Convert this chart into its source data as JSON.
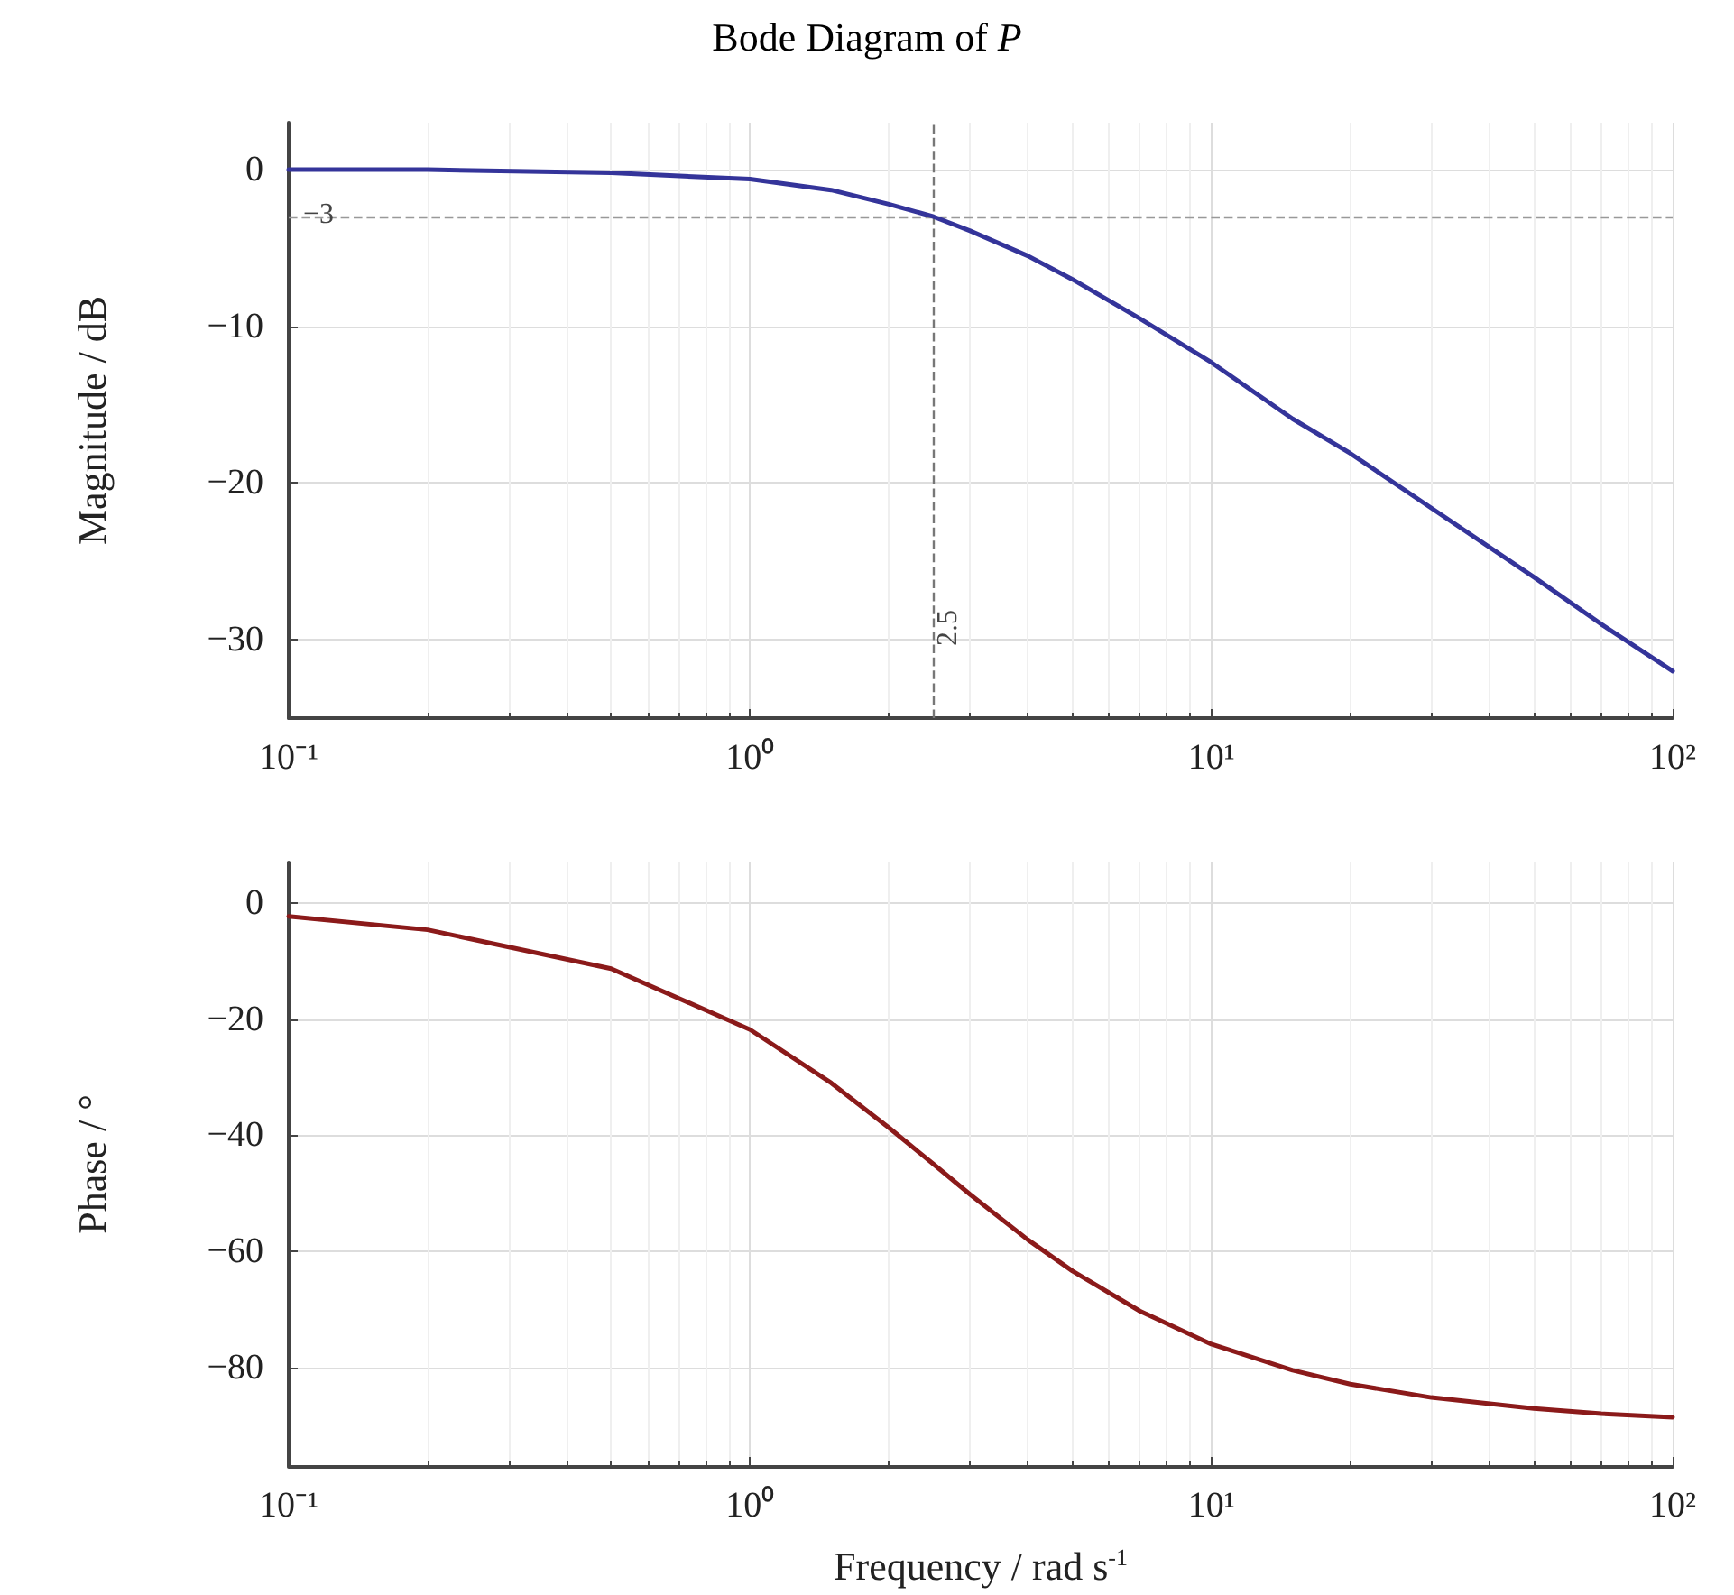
{
  "chart_data": [
    {
      "type": "line",
      "title": "Bode Diagram of P",
      "ylabel": "Magnitude / dB",
      "x": [
        0.1,
        0.2,
        0.5,
        1,
        1.5,
        2,
        2.5,
        3,
        4,
        5,
        7,
        10,
        15,
        20,
        30,
        50,
        70,
        100
      ],
      "series": [
        {
          "color": "#34349a",
          "values": [
            0.0,
            0.0,
            -0.2,
            -0.6,
            -1.3,
            -2.2,
            -3.0,
            -3.9,
            -5.5,
            -7.0,
            -9.5,
            -12.3,
            -15.9,
            -18.1,
            -21.6,
            -26.0,
            -29.0,
            -32.0
          ]
        }
      ],
      "log": "x",
      "xlim": [
        0.1,
        100
      ],
      "xticks": [
        {
          "value": 0.1,
          "label": "10⁻¹"
        },
        {
          "value": 1,
          "label": "10⁰"
        },
        {
          "value": 10,
          "label": "10¹"
        },
        {
          "value": 100,
          "label": "10²"
        }
      ],
      "ylim": [
        -35,
        3
      ],
      "yticks": [
        0,
        {
          "value": -10,
          "label": "−10"
        },
        {
          "value": -20,
          "label": "−20"
        },
        {
          "value": -30,
          "label": "−30"
        }
      ],
      "ref_lines": [
        {
          "axis": "y",
          "value": -3,
          "label": "−3",
          "color": "#999999",
          "line_style": "dashed"
        },
        {
          "axis": "x",
          "value": 2.5,
          "label": "2.5",
          "color": "#777777",
          "line_style": "dashed"
        }
      ],
      "grid": true,
      "marker": "none",
      "line_style": "solid"
    },
    {
      "type": "line",
      "xlabel": "Frequency / rad s$^{-1}$",
      "ylabel": "Phase / °",
      "x": [
        0.1,
        0.2,
        0.5,
        1,
        1.5,
        2,
        2.5,
        3,
        4,
        5,
        7,
        10,
        15,
        20,
        30,
        50,
        70,
        100
      ],
      "series": [
        {
          "color": "#8b1a1a",
          "values": [
            -2.3,
            -4.6,
            -11.3,
            -21.8,
            -31.0,
            -38.7,
            -45.0,
            -50.2,
            -58.0,
            -63.4,
            -70.3,
            -76.0,
            -80.5,
            -82.9,
            -85.2,
            -87.1,
            -88.0,
            -88.6
          ]
        }
      ],
      "log": "x",
      "xlim": [
        0.1,
        100
      ],
      "xticks": [
        {
          "value": 0.1,
          "label": "10⁻¹"
        },
        {
          "value": 1,
          "label": "10⁰"
        },
        {
          "value": 10,
          "label": "10¹"
        },
        {
          "value": 100,
          "label": "10²"
        }
      ],
      "ylim": [
        -97,
        7
      ],
      "yticks": [
        0,
        {
          "value": -20,
          "label": "−20"
        },
        {
          "value": -40,
          "label": "−40"
        },
        {
          "value": -60,
          "label": "−60"
        },
        {
          "value": -80,
          "label": "−80"
        }
      ],
      "grid": true,
      "marker": "none",
      "line_style": "solid"
    }
  ]
}
